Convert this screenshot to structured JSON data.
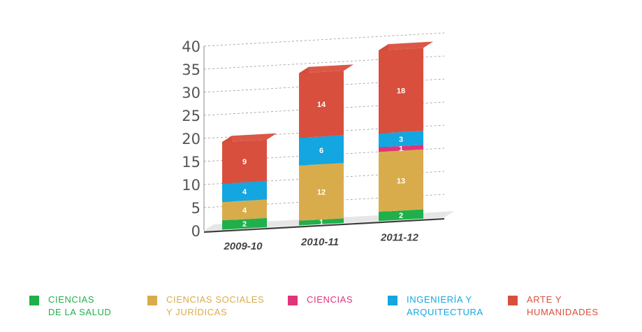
{
  "chart_data": {
    "type": "bar",
    "stacked": true,
    "three_d": true,
    "categories": [
      "2009-10",
      "2010-11",
      "2011-12"
    ],
    "series": [
      {
        "name": "CIENCIAS DE LA SALUD",
        "legend_lines": [
          "CIENCIAS",
          "DE LA SALUD"
        ],
        "color": "#1fb04b",
        "values": [
          2,
          1,
          2
        ]
      },
      {
        "name": "CIENCIAS SOCIALES Y JURÍDICAS",
        "legend_lines": [
          "CIENCIAS SOCIALES",
          "Y JURÍDICAS"
        ],
        "color": "#d9ac4b",
        "values": [
          4,
          12,
          13
        ]
      },
      {
        "name": "CIENCIAS",
        "legend_lines": [
          "CIENCIAS"
        ],
        "color": "#e2347a",
        "values": [
          0,
          0,
          1
        ]
      },
      {
        "name": "INGENIERÍA Y ARQUITECTURA",
        "legend_lines": [
          "INGENIERÍA Y",
          "ARQUITECTURA"
        ],
        "color": "#13a6e0",
        "values": [
          4,
          6,
          3
        ]
      },
      {
        "name": "ARTE Y HUMANIDADES",
        "legend_lines": [
          "ARTE Y",
          "HUMANIDADES"
        ],
        "color": "#d94f3d",
        "values": [
          9,
          14,
          18
        ]
      }
    ],
    "yticks": [
      0,
      5,
      10,
      15,
      20,
      25,
      30,
      35,
      40
    ],
    "ylim": [
      0,
      40
    ],
    "grid": true,
    "legend_position": "bottom",
    "title": "",
    "xlabel": "",
    "ylabel": ""
  }
}
